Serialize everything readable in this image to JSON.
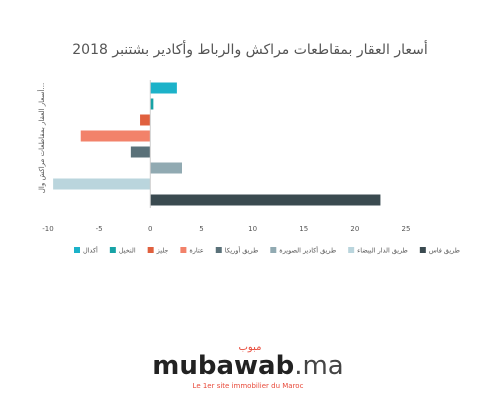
{
  "chart_data": {
    "type": "hbar",
    "title": "أسعار العقار بمقاطعات مراكش والرباط وأكادير بشتنبر 2018",
    "y_label": "أسعار العقار بمقاطعات مراكش وال...",
    "series": [
      {
        "name": "أكدال",
        "color": "#1cb2c9",
        "values": [
          2.6
        ]
      },
      {
        "name": "النخيل",
        "color": "#17a3a6",
        "values": [
          0.3
        ]
      },
      {
        "name": "جليز",
        "color": "#e0603e",
        "values": [
          -1
        ]
      },
      {
        "name": "عتارة",
        "color": "#f2826a",
        "values": [
          -6.8
        ]
      },
      {
        "name": "طريق أوريكا",
        "color": "#5a7179",
        "values": [
          -1.9
        ]
      },
      {
        "name": "طريق أكادير الصويرة",
        "color": "#91aab2",
        "values": [
          3.1
        ]
      },
      {
        "name": "طريق الدار البيضاء",
        "color": "#bad5dd",
        "values": [
          -9.5
        ]
      },
      {
        "name": "طريق فاس",
        "color": "#3a4a50",
        "values": [
          22.5
        ]
      }
    ],
    "xlim": [
      -10,
      25
    ],
    "xticks": [
      -10,
      -5,
      0,
      5,
      10,
      15,
      20,
      25
    ],
    "grid": false
  },
  "logo": {
    "name": "mubawab",
    "suffix": ".ma",
    "arabic": "مبوب",
    "tagline": "Le 1er site immobilier du Maroc"
  }
}
